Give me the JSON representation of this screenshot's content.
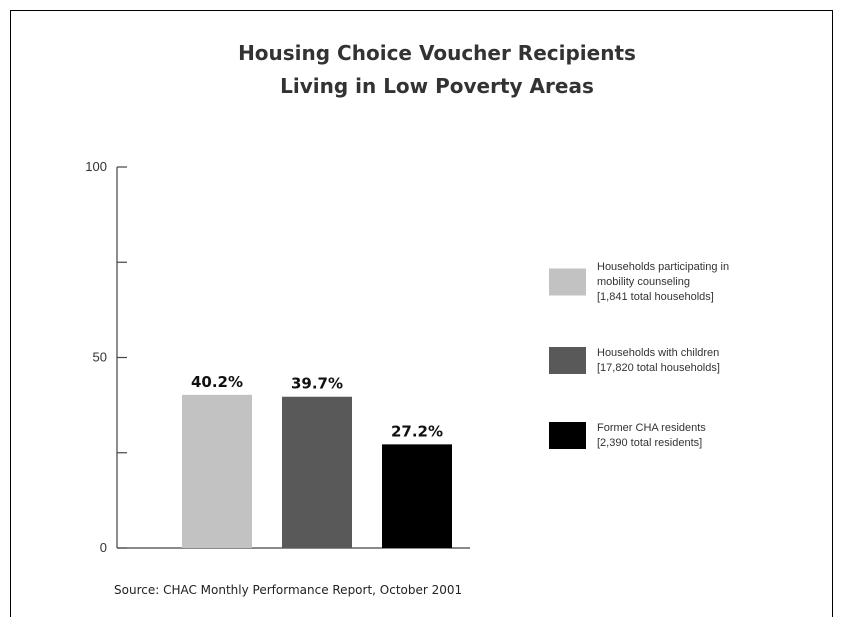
{
  "chart_data": {
    "type": "bar",
    "title": [
      "Housing Choice Voucher Recipients",
      "Living in Low Poverty Areas"
    ],
    "categories": [
      "Households participating in mobility counseling",
      "Households with children",
      "Former CHA residents"
    ],
    "values": [
      40.2,
      39.7,
      27.2
    ],
    "value_labels": [
      "40.2%",
      "39.7%",
      "27.2%"
    ],
    "colors": [
      "#c2c2c2",
      "#595959",
      "#000000"
    ],
    "ylim": [
      0,
      100
    ],
    "yticks": [
      0,
      25,
      50,
      75,
      100
    ],
    "ytick_labels": [
      "0",
      "",
      "50",
      "",
      "100"
    ],
    "xlabel": "",
    "ylabel": "",
    "grid": false,
    "legend_position": "right",
    "legend": [
      {
        "lines": [
          "Households participating in",
          "mobility counseling",
          "[1,841 total households]"
        ]
      },
      {
        "lines": [
          "Households with children",
          "[17,820 total households]"
        ]
      },
      {
        "lines": [
          "Former CHA residents",
          "[2,390 total residents]"
        ]
      }
    ]
  },
  "source": "Source: CHAC Monthly Performance Report, October 2001"
}
